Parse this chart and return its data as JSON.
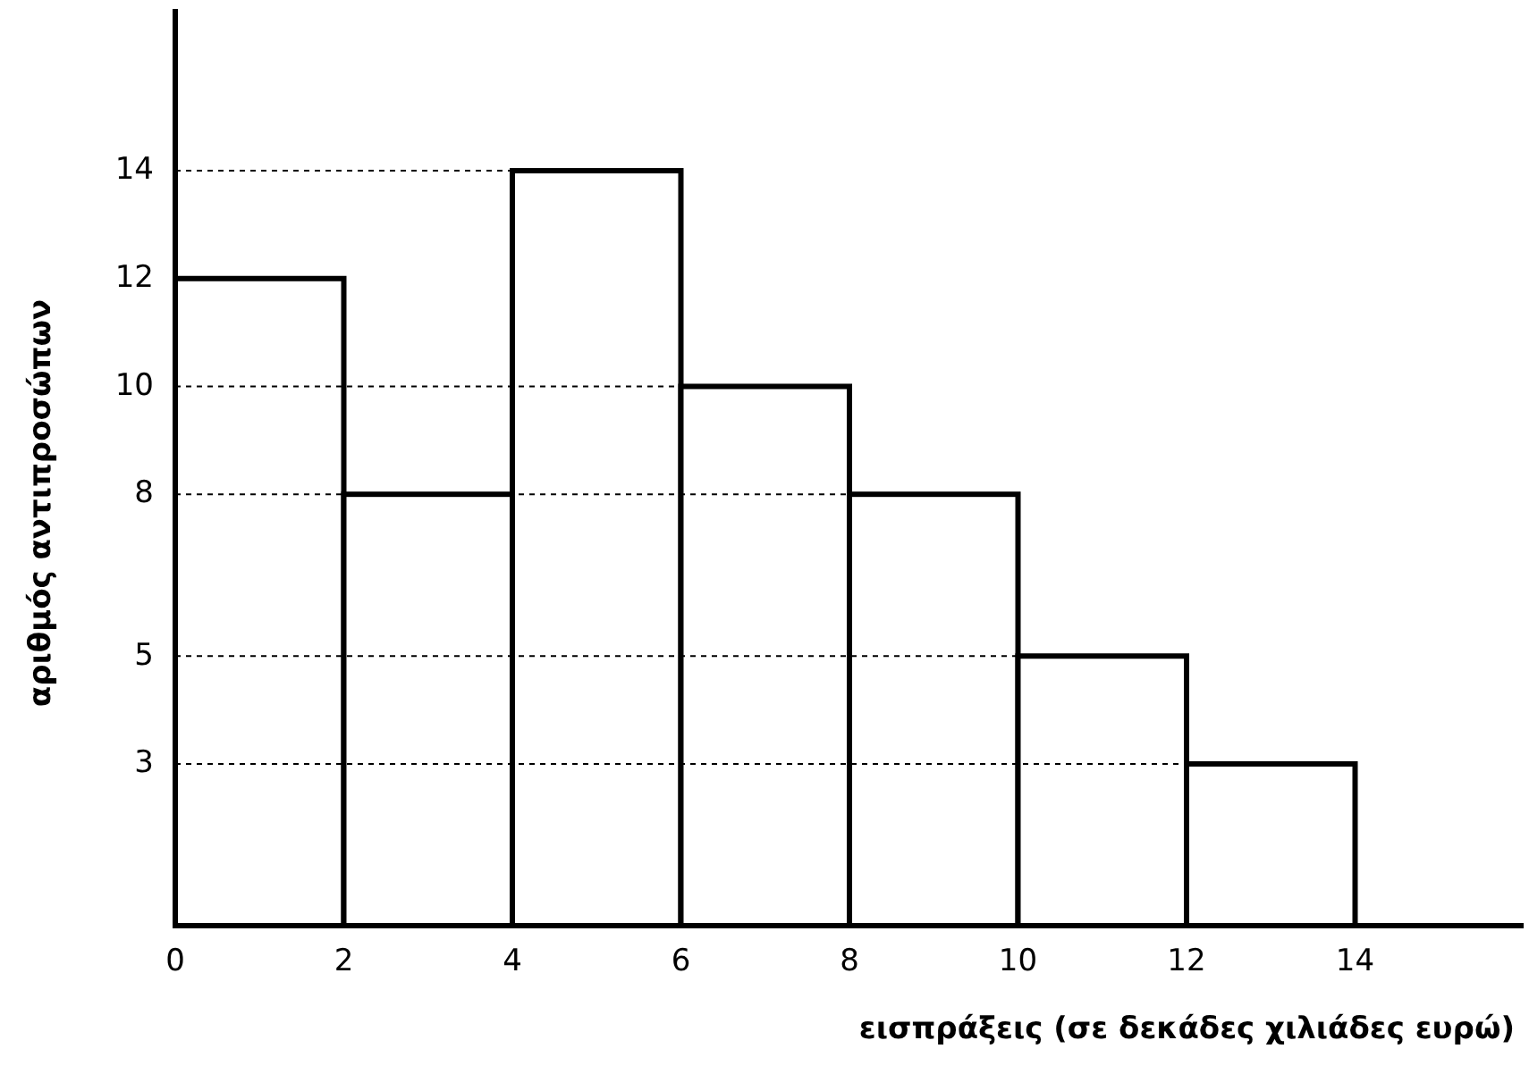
{
  "chart_data": {
    "type": "histogram",
    "xlabel": "εισπράξεις (σε δεκάδες χιλιάδες ευρώ)",
    "ylabel": "αριθμός αντιπροσώπων",
    "bins": [
      0,
      2,
      4,
      6,
      8,
      10,
      12,
      14
    ],
    "values": [
      12,
      8,
      14,
      10,
      8,
      5,
      3
    ],
    "color": "#ffffff",
    "xlim": [
      0,
      16
    ],
    "xticks": [
      0,
      2,
      4,
      6,
      8,
      10,
      12,
      14
    ],
    "ylim": [
      0,
      17
    ],
    "yticks": [
      3,
      5,
      8,
      10,
      12,
      14
    ],
    "ref_lines": [
      {
        "axis": "y",
        "value": 14,
        "line_style": "dashed"
      },
      {
        "axis": "y",
        "value": 10,
        "line_style": "dashed"
      },
      {
        "axis": "y",
        "value": 8,
        "line_style": "dashed"
      },
      {
        "axis": "y",
        "value": 5,
        "line_style": "dashed"
      },
      {
        "axis": "y",
        "value": 3,
        "line_style": "dashed"
      }
    ]
  }
}
